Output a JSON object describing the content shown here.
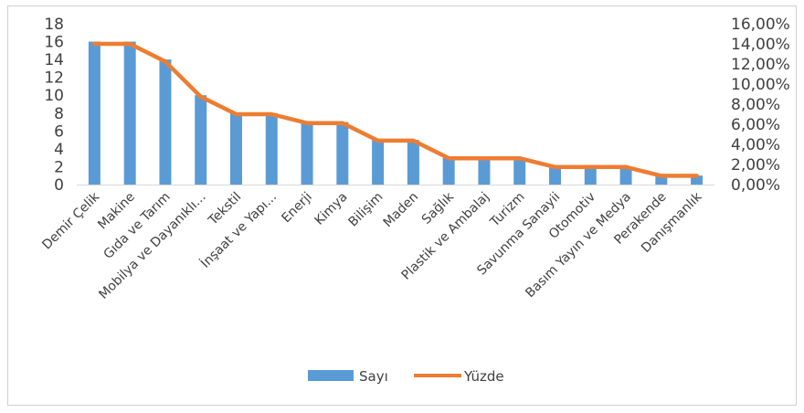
{
  "chart_data": {
    "type": "bar+line",
    "categories": [
      "Demir Çelik",
      "Makine",
      "Gıda ve Tarım",
      "Mobilya ve Dayanıklı...",
      "Tekstil",
      "İnşaat ve Yapı...",
      "Enerji",
      "Kimya",
      "Bilişim",
      "Maden",
      "Sağlık",
      "Plastik ve Ambalaj",
      "Turizm",
      "Savunma Sanayii",
      "Otomotiv",
      "Basım Yayın ve Medya",
      "Perakende",
      "Danışmanlık"
    ],
    "series": [
      {
        "name": "Sayı",
        "type": "bar",
        "axis": "left",
        "color": "#5B9BD5",
        "values": [
          16,
          16,
          14,
          10,
          8,
          8,
          7,
          7,
          5,
          5,
          3,
          3,
          3,
          2,
          2,
          2,
          1,
          1
        ]
      },
      {
        "name": "Yüzde",
        "type": "line",
        "axis": "right",
        "color": "#ED7D31",
        "values": [
          0.14,
          0.14,
          0.1225,
          0.0875,
          0.07,
          0.07,
          0.0612,
          0.0612,
          0.0437,
          0.0437,
          0.0262,
          0.0262,
          0.0262,
          0.0175,
          0.0175,
          0.0175,
          0.0087,
          0.0087
        ]
      }
    ],
    "y_left": {
      "min": 0,
      "max": 18,
      "ticks": [
        "0",
        "2",
        "4",
        "6",
        "8",
        "10",
        "12",
        "14",
        "16",
        "18"
      ]
    },
    "y_right": {
      "min": 0,
      "max": 0.16,
      "ticks": [
        "0,00%",
        "2,00%",
        "4,00%",
        "6,00%",
        "8,00%",
        "10,00%",
        "12,00%",
        "14,00%",
        "16,00%"
      ]
    },
    "legend_position": "bottom",
    "gridlines": false,
    "title": "",
    "xlabel": "",
    "ylabel": ""
  }
}
